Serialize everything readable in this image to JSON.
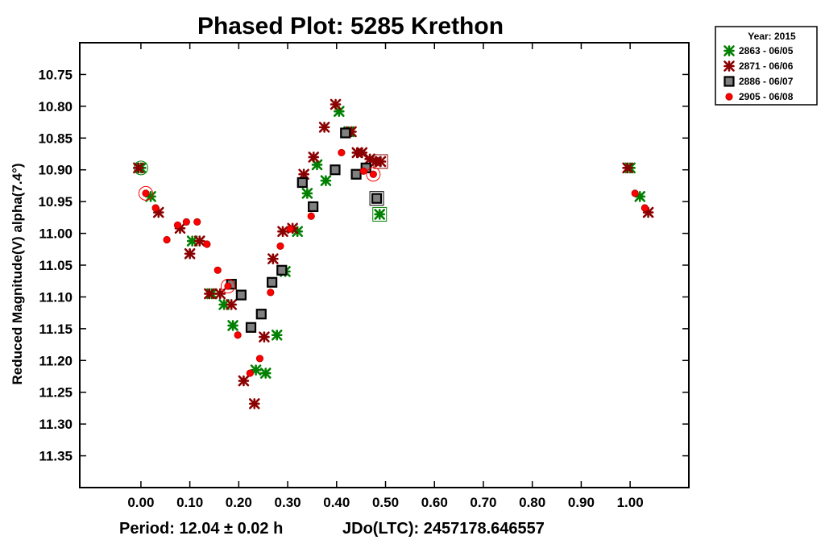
{
  "chart_data": {
    "type": "scatter",
    "title": "Phased Plot: 5285 Krethon",
    "ylabel": "Reduced Magnitude(V) alpha(7.4°)",
    "xlabel": "",
    "footer": {
      "period": "Period: 12.04 ± 0.02 h",
      "epoch": "JDo(LTC): 2457178.646557"
    },
    "xlim": [
      -0.125,
      1.12
    ],
    "ylim": [
      10.7,
      11.4
    ],
    "y_inverted": true,
    "x_ticks": [
      "0.00",
      "0.10",
      "0.20",
      "0.30",
      "0.40",
      "0.50",
      "0.60",
      "0.70",
      "0.80",
      "0.90",
      "1.00"
    ],
    "y_ticks": [
      "10.75",
      "10.80",
      "10.85",
      "10.90",
      "10.95",
      "11.00",
      "11.05",
      "11.10",
      "11.15",
      "11.20",
      "11.25",
      "11.30",
      "11.35"
    ],
    "grid": false,
    "legend": {
      "title": "Year: 2015",
      "position": "outside-top-right"
    },
    "series": [
      {
        "name": "2863 - 06/05",
        "marker": "asterisk",
        "color": "#008000",
        "points": [
          [
            0.0,
            10.897
          ],
          [
            0.02,
            10.942
          ],
          [
            0.105,
            11.012
          ],
          [
            0.145,
            11.095
          ],
          [
            0.17,
            11.112
          ],
          [
            0.188,
            11.145
          ],
          [
            0.235,
            11.215
          ],
          [
            0.255,
            11.22
          ],
          [
            0.278,
            11.16
          ],
          [
            0.295,
            11.06
          ],
          [
            0.32,
            10.997
          ],
          [
            0.34,
            10.937
          ],
          [
            0.36,
            10.892
          ],
          [
            0.378,
            10.917
          ],
          [
            0.405,
            10.808
          ],
          [
            0.425,
            10.84
          ],
          [
            0.488,
            10.97
          ],
          [
            1.0,
            10.897
          ],
          [
            1.02,
            10.942
          ]
        ],
        "highlighted": [
          [
            0.0,
            10.897
          ],
          [
            0.488,
            10.97
          ]
        ]
      },
      {
        "name": "2871 - 06/06",
        "marker": "asterisk",
        "color": "#8b0000",
        "points": [
          [
            -0.005,
            10.897
          ],
          [
            0.036,
            10.967
          ],
          [
            0.08,
            10.992
          ],
          [
            0.1,
            11.032
          ],
          [
            0.12,
            11.012
          ],
          [
            0.14,
            11.095
          ],
          [
            0.162,
            11.095
          ],
          [
            0.185,
            11.112
          ],
          [
            0.21,
            11.232
          ],
          [
            0.232,
            11.268
          ],
          [
            0.252,
            11.163
          ],
          [
            0.27,
            11.04
          ],
          [
            0.29,
            10.997
          ],
          [
            0.31,
            10.992
          ],
          [
            0.333,
            10.907
          ],
          [
            0.353,
            10.88
          ],
          [
            0.375,
            10.833
          ],
          [
            0.398,
            10.797
          ],
          [
            0.43,
            10.84
          ],
          [
            0.442,
            10.873
          ],
          [
            0.452,
            10.873
          ],
          [
            0.468,
            10.883
          ],
          [
            0.48,
            10.887
          ],
          [
            0.49,
            10.887
          ],
          [
            0.995,
            10.897
          ],
          [
            1.037,
            10.967
          ]
        ],
        "highlighted": [
          [
            0.49,
            10.887
          ]
        ]
      },
      {
        "name": "2886 - 06/07",
        "marker": "square",
        "color": "#808080",
        "points": [
          [
            0.185,
            11.08
          ],
          [
            0.205,
            11.097
          ],
          [
            0.225,
            11.148
          ],
          [
            0.246,
            11.127
          ],
          [
            0.268,
            11.077
          ],
          [
            0.288,
            11.058
          ],
          [
            0.33,
            10.92
          ],
          [
            0.352,
            10.958
          ],
          [
            0.397,
            10.9
          ],
          [
            0.418,
            10.842
          ],
          [
            0.44,
            10.907
          ],
          [
            0.46,
            10.897
          ],
          [
            0.482,
            10.945
          ]
        ],
        "highlighted": [
          [
            0.482,
            10.945
          ]
        ]
      },
      {
        "name": "2905 - 06/08",
        "marker": "dot",
        "color": "#ff0000",
        "points": [
          [
            0.01,
            10.937
          ],
          [
            0.03,
            10.96
          ],
          [
            0.053,
            11.01
          ],
          [
            0.075,
            10.987
          ],
          [
            0.093,
            10.982
          ],
          [
            0.115,
            10.982
          ],
          [
            0.135,
            11.017
          ],
          [
            0.157,
            11.058
          ],
          [
            0.178,
            11.083
          ],
          [
            0.198,
            11.16
          ],
          [
            0.223,
            11.22
          ],
          [
            0.243,
            11.197
          ],
          [
            0.265,
            11.093
          ],
          [
            0.285,
            11.02
          ],
          [
            0.305,
            10.993
          ],
          [
            0.348,
            10.973
          ],
          [
            0.41,
            10.873
          ],
          [
            0.455,
            10.902
          ],
          [
            0.475,
            10.907
          ],
          [
            1.01,
            10.937
          ],
          [
            1.03,
            10.96
          ]
        ],
        "highlighted": [
          [
            0.01,
            10.937
          ],
          [
            0.178,
            11.083
          ],
          [
            0.475,
            10.907
          ]
        ]
      }
    ]
  }
}
